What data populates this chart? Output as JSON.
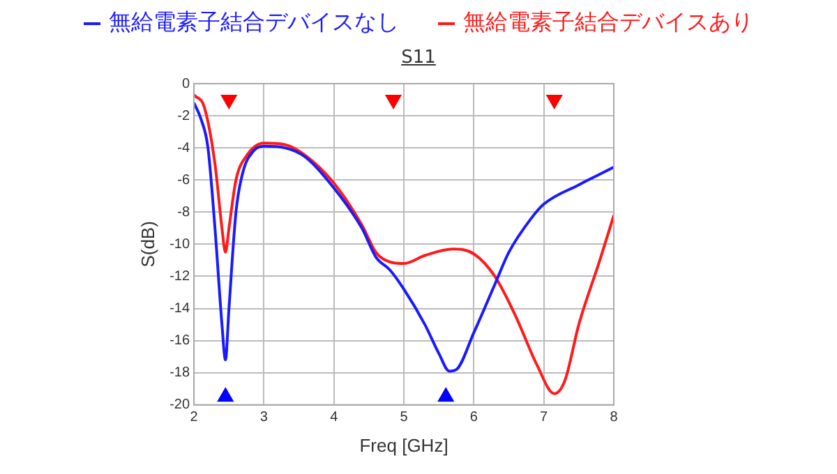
{
  "chart_data": {
    "type": "line",
    "title": "S11",
    "xlabel": "Freq [GHz]",
    "ylabel": "S(dB)",
    "xlim": [
      2,
      8
    ],
    "xticks": [
      2,
      3,
      4,
      5,
      6,
      7,
      8
    ],
    "ylim": [
      -20,
      0
    ],
    "yticks": [
      0,
      -2,
      -4,
      -6,
      -8,
      -10,
      -12,
      -14,
      -16,
      -18,
      -20
    ],
    "grid": true,
    "legend": "top",
    "marker": "none",
    "line_style": "solid",
    "series": [
      {
        "name": "無給電素子結合デバイスなし",
        "color": "#1a1aff",
        "x": [
          2,
          2.1,
          2.2,
          2.3,
          2.4,
          2.45,
          2.5,
          2.6,
          2.7,
          2.85,
          3.0,
          3.3,
          3.6,
          4.0,
          4.4,
          4.6,
          4.8,
          5.0,
          5.3,
          5.5,
          5.65,
          5.75,
          6.0,
          6.3,
          6.5,
          6.8,
          7.0,
          7.5,
          8
        ],
        "values": [
          -1.2,
          -2.2,
          -4,
          -9,
          -15,
          -17.2,
          -14,
          -8,
          -5.5,
          -4.2,
          -3.9,
          -4,
          -4.6,
          -6.5,
          -9,
          -10.8,
          -11.6,
          -12.8,
          -15,
          -16.8,
          -17.9,
          -17.8,
          -15.5,
          -12.5,
          -10.5,
          -8.5,
          -7.5,
          -6.3,
          -5.2
        ]
      },
      {
        "name": "無給電素子結合デバイスあり",
        "color": "#ff1a1a",
        "x": [
          2,
          2.15,
          2.3,
          2.4,
          2.45,
          2.5,
          2.6,
          2.75,
          3.0,
          3.3,
          3.6,
          4.0,
          4.4,
          4.6,
          4.8,
          5.0,
          5.3,
          5.7,
          6.0,
          6.3,
          6.6,
          6.9,
          7.15,
          7.3,
          7.5,
          7.8,
          8
        ],
        "values": [
          -0.7,
          -1.5,
          -5,
          -9,
          -10.5,
          -9,
          -6,
          -4.5,
          -3.7,
          -3.8,
          -4.5,
          -6.2,
          -8.8,
          -10.5,
          -11.1,
          -11.2,
          -10.7,
          -10.3,
          -10.6,
          -12,
          -14.5,
          -17.5,
          -19.3,
          -18.5,
          -15,
          -11,
          -8.2
        ]
      },
      {
        "type": "scatter",
        "color": "#ff0000",
        "marker": "triangle_down",
        "x": [
          2.5,
          4.85,
          7.15
        ],
        "values": [
          -1,
          -1,
          -1
        ]
      },
      {
        "type": "scatter",
        "color": "#0000ff",
        "marker": "triangle",
        "x": [
          2.45,
          5.6
        ],
        "values": [
          -19.5,
          -19.5
        ]
      }
    ]
  }
}
